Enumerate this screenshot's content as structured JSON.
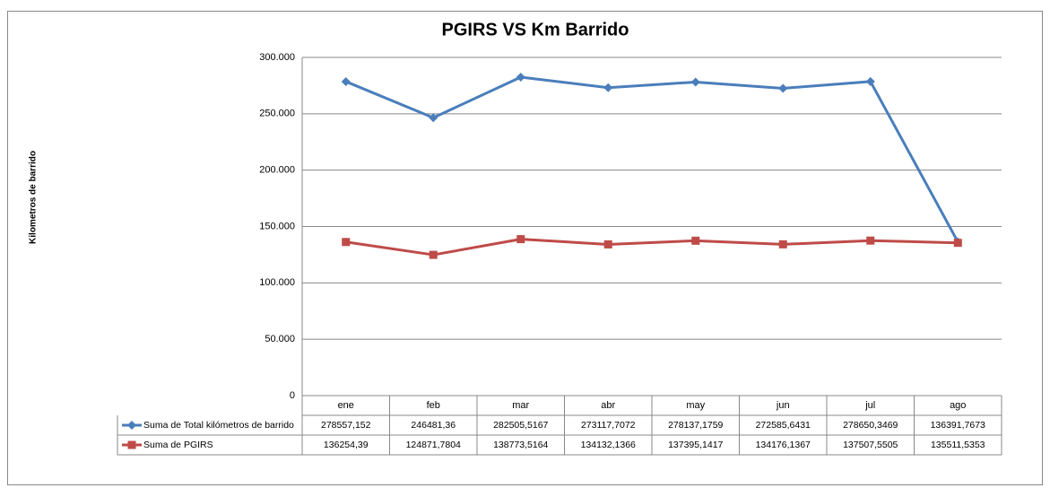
{
  "chart_data": {
    "type": "line",
    "title": "PGIRS VS Km Barrido",
    "y_label": "Kilometros de barrido",
    "categories": [
      "ene",
      "feb",
      "mar",
      "abr",
      "may",
      "jun",
      "jul",
      "ago"
    ],
    "series": [
      {
        "name": "Suma de Total kilómetros de barrido",
        "color": "#4a7ebb",
        "marker": "diamond",
        "values": [
          278557.152,
          246481.36,
          282505.5167,
          273117.7072,
          278137.1759,
          272585.6431,
          278650.3469,
          136391.7673
        ],
        "value_labels": [
          "278557,152",
          "246481,36",
          "282505,5167",
          "273117,7072",
          "278137,1759",
          "272585,6431",
          "278650,3469",
          "136391,7673"
        ]
      },
      {
        "name": "Suma de PGIRS",
        "color": "#be4b48",
        "marker": "square",
        "values": [
          136254.39,
          124871.7804,
          138773.5164,
          134132.1366,
          137395.1417,
          134176.1367,
          137507.5505,
          135511.5353
        ],
        "value_labels": [
          "136254,39",
          "124871,7804",
          "138773,5164",
          "134132,1366",
          "137395,1417",
          "134176,1367",
          "137507,5505",
          "135511,5353"
        ]
      }
    ],
    "ylim": [
      0,
      300000
    ],
    "yticks": [
      0,
      {
        "value": 50000,
        "label": "50.000"
      },
      {
        "value": 100000,
        "label": "100.000"
      },
      {
        "value": 150000,
        "label": "150.000"
      },
      {
        "value": 200000,
        "label": "200.000"
      },
      {
        "value": 250000,
        "label": "250.000"
      },
      {
        "value": 300000,
        "label": "300.000"
      }
    ],
    "grid": true,
    "data_table": true
  }
}
